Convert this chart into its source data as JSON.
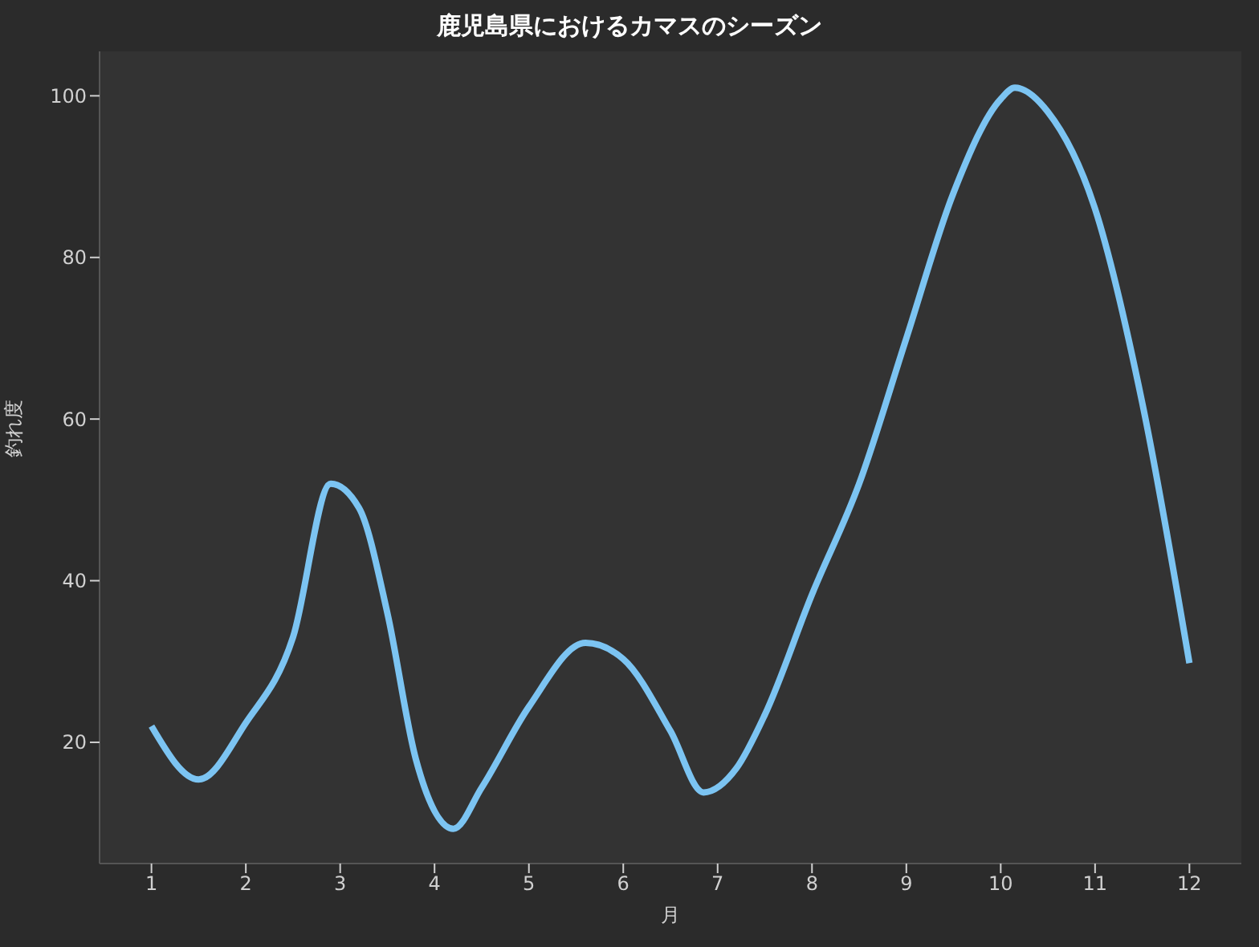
{
  "chart_data": {
    "type": "line",
    "title": "鹿児島県におけるカマスのシーズン",
    "xlabel": "月",
    "ylabel": "釣れ度",
    "xlim": [
      0.45,
      12.55
    ],
    "xticks": [
      1,
      2,
      3,
      4,
      5,
      6,
      7,
      8,
      9,
      10,
      11,
      12
    ],
    "ylim": [
      5,
      105.5
    ],
    "yticks": [
      20,
      40,
      60,
      80,
      100
    ],
    "series": [
      {
        "color": "#7cc4f2",
        "x": [
          1,
          1.5,
          2,
          2.5,
          2.9,
          3.2,
          3.5,
          3.8,
          4.2,
          4.5,
          5,
          5.6,
          6,
          6.5,
          6.85,
          7.2,
          7.5,
          8,
          8.5,
          9,
          9.5,
          10,
          10.15,
          10.5,
          11,
          11.5,
          12
        ],
        "values": [
          22,
          15.4,
          22.4,
          33,
          52,
          49,
          36,
          18,
          9.3,
          14.4,
          24.4,
          32.3,
          30.3,
          21.4,
          13.8,
          16.8,
          23.4,
          38.3,
          52,
          70,
          88,
          99.6,
          101,
          98,
          86,
          62,
          29.8
        ]
      }
    ],
    "grid": false,
    "marker": "none",
    "line_style": "solid"
  }
}
